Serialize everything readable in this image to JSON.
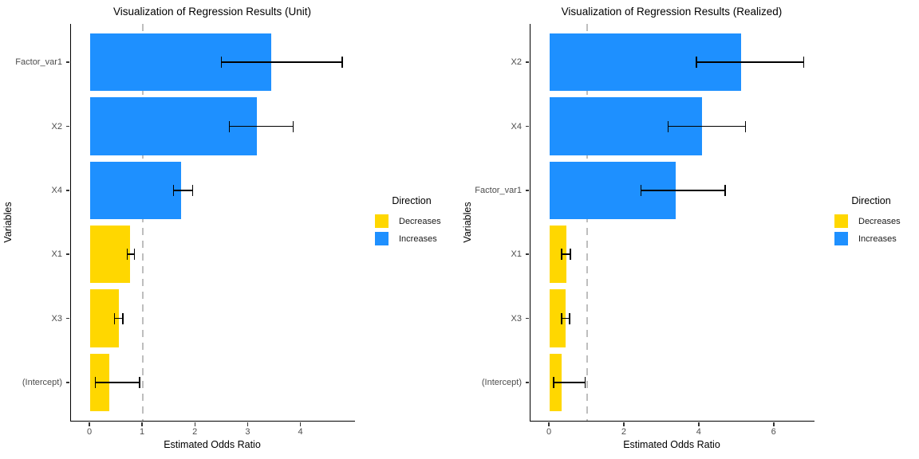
{
  "legend": {
    "title": "Direction",
    "entries": [
      {
        "label": "Decreases",
        "color": "#FFD700"
      },
      {
        "label": "Increases",
        "color": "#1E90FF"
      }
    ]
  },
  "chart_data": [
    {
      "type": "bar",
      "orientation": "horizontal",
      "title": "Visualization of Regression Results (Unit)",
      "xlabel": "Estimated Odds Ratio",
      "ylabel": "Variables",
      "categories": [
        "Factor_var1",
        "X2",
        "X4",
        "X1",
        "X3",
        "(Intercept)"
      ],
      "values": [
        3.43,
        3.16,
        1.72,
        0.76,
        0.54,
        0.36
      ],
      "ci_low": [
        2.49,
        2.64,
        1.58,
        0.7,
        0.46,
        0.1
      ],
      "ci_high": [
        4.78,
        3.85,
        1.94,
        0.84,
        0.62,
        0.94
      ],
      "direction": [
        "Increases",
        "Increases",
        "Increases",
        "Decreases",
        "Decreases",
        "Decreases"
      ],
      "x_ticks": [
        0,
        1,
        2,
        3,
        4
      ],
      "xlim": [
        0,
        4.9
      ],
      "reference_line_x": 1,
      "reference_line_color": "#BEBEBE",
      "grid": false,
      "legend_position": "right"
    },
    {
      "type": "bar",
      "orientation": "horizontal",
      "title": "Visualization of Regression Results (Realized)",
      "xlabel": "Estimated Odds Ratio",
      "ylabel": "Variables",
      "categories": [
        "X2",
        "X4",
        "Factor_var1",
        "X1",
        "X3",
        "(Intercept)"
      ],
      "values": [
        5.11,
        4.07,
        3.37,
        0.44,
        0.42,
        0.32
      ],
      "ci_low": [
        3.92,
        3.16,
        2.44,
        0.32,
        0.32,
        0.11
      ],
      "ci_high": [
        6.78,
        5.23,
        4.68,
        0.55,
        0.53,
        0.95
      ],
      "direction": [
        "Increases",
        "Increases",
        "Increases",
        "Decreases",
        "Decreases",
        "Decreases"
      ],
      "x_ticks": [
        0,
        2,
        4,
        6
      ],
      "xlim": [
        0,
        6.9
      ],
      "reference_line_x": 1,
      "reference_line_color": "#BEBEBE",
      "grid": false,
      "legend_position": "right"
    }
  ]
}
